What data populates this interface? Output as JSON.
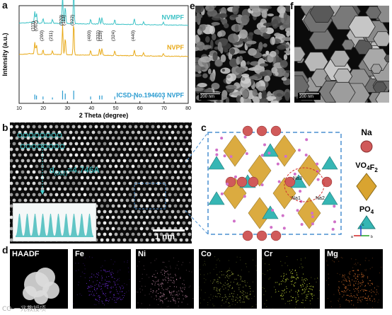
{
  "panels": {
    "a": {
      "label": "a",
      "chart_data": {
        "type": "line",
        "xlabel": "2 Theta (degree)",
        "ylabel": "Intensity (a.u.)",
        "xlim": [
          10,
          80
        ],
        "xticks": [
          10,
          20,
          30,
          40,
          50,
          60,
          70,
          80
        ],
        "grid": false,
        "series": [
          {
            "name": "NVMPF",
            "color": "#3cc2c6",
            "offset": 0.8,
            "baseline_points": [
              [
                10,
                0.02
              ],
              [
                15,
                0.03
              ],
              [
                18,
                0.02
              ],
              [
                25,
                0.02
              ],
              [
                35,
                0.015
              ],
              [
                50,
                0.01
              ],
              [
                80,
                0.0
              ]
            ],
            "peaks": [
              [
                16.5,
                0.12
              ],
              [
                17.2,
                0.1
              ],
              [
                19.9,
                0.05
              ],
              [
                23.8,
                0.04
              ],
              [
                28.0,
                0.3
              ],
              [
                29.1,
                0.18
              ],
              [
                32.6,
                0.34
              ],
              [
                39.6,
                0.05
              ],
              [
                43.3,
                0.07
              ],
              [
                44.3,
                0.07
              ],
              [
                49.6,
                0.05
              ],
              [
                57.7,
                0.06
              ],
              [
                61.5,
                0.03
              ],
              [
                69.7,
                0.03
              ]
            ]
          },
          {
            "name": "NVPF",
            "color": "#e8a917",
            "offset": 0.48,
            "baseline_points": [
              [
                10,
                0.02
              ],
              [
                15,
                0.03
              ],
              [
                18,
                0.02
              ],
              [
                25,
                0.02
              ],
              [
                35,
                0.015
              ],
              [
                50,
                0.01
              ],
              [
                80,
                0.0
              ]
            ],
            "peaks": [
              [
                16.5,
                0.12
              ],
              [
                17.2,
                0.1
              ],
              [
                19.9,
                0.05
              ],
              [
                23.8,
                0.04
              ],
              [
                28.0,
                0.3
              ],
              [
                29.1,
                0.18
              ],
              [
                32.6,
                0.34
              ],
              [
                39.6,
                0.05
              ],
              [
                43.3,
                0.07
              ],
              [
                44.3,
                0.07
              ],
              [
                49.6,
                0.05
              ],
              [
                57.7,
                0.06
              ],
              [
                61.5,
                0.03
              ],
              [
                69.7,
                0.03
              ]
            ]
          },
          {
            "name": "ICSD-No.194603 NVPF",
            "color": "#2a9bd0",
            "type": "sticks",
            "offset": 0.04,
            "sticks": [
              [
                16.5,
                0.05
              ],
              [
                17.2,
                0.04
              ],
              [
                19.9,
                0.03
              ],
              [
                23.8,
                0.02
              ],
              [
                28.0,
                0.09
              ],
              [
                29.1,
                0.06
              ],
              [
                32.6,
                0.09
              ],
              [
                39.6,
                0.03
              ],
              [
                43.3,
                0.04
              ],
              [
                44.3,
                0.04
              ],
              [
                49.6,
                0.03
              ],
              [
                57.7,
                0.035
              ],
              [
                69.7,
                0.02
              ]
            ]
          }
        ],
        "annotations": [
          {
            "text": "(111)",
            "x": 16.3
          },
          {
            "text": "(002)",
            "x": 17.4
          },
          {
            "text": "(200)",
            "x": 19.9
          },
          {
            "text": "(211)",
            "x": 23.8
          },
          {
            "text": "(220)",
            "x": 28.0
          },
          {
            "text": "(113)",
            "x": 29.1
          },
          {
            "text": "(222)",
            "x": 32.6
          },
          {
            "text": "(400)",
            "x": 39.6
          },
          {
            "text": "(331)",
            "x": 43.3
          },
          {
            "text": "(115)",
            "x": 44.3
          },
          {
            "text": "(324)",
            "x": 49.6
          },
          {
            "text": "(440)",
            "x": 57.7
          }
        ]
      }
    },
    "b": {
      "label": "b",
      "dspacing_prefix": "d",
      "dspacing_sub": "(002)",
      "dspacing_value": "=4.746A",
      "scalebar": "1 nm"
    },
    "c": {
      "label": "c",
      "site_labels": [
        "Na3",
        "Na1",
        "Na2"
      ],
      "legend": {
        "na": "Na",
        "vo_base": "VO",
        "vo_sub1": "4",
        "vo_mid": "F",
        "vo_sub2": "2",
        "po_base": "PO",
        "po_sub": "4"
      },
      "axes": {
        "a": "a",
        "b": "b",
        "c": "c"
      },
      "colors": {
        "na": "#d05a5a",
        "vo": "#d9a430",
        "po": "#36b6b4",
        "box": "#4a8fd0"
      }
    },
    "e": {
      "label": "e",
      "scalebar": "200 nm"
    },
    "f": {
      "label": "f",
      "scalebar": "200 nm"
    },
    "d": {
      "label": "d",
      "maps": [
        {
          "name": "HAADF",
          "color": "#e6e6e6"
        },
        {
          "name": "Fe",
          "color": "#6a2bd6"
        },
        {
          "name": "Ni",
          "color": "#c48aa6"
        },
        {
          "name": "Co",
          "color": "#8f9a3a"
        },
        {
          "name": "Cr",
          "color": "#cfe63a"
        },
        {
          "name": "Mg",
          "color": "#e0742e"
        }
      ]
    },
    "watermark": "CO-一兆教授项"
  }
}
